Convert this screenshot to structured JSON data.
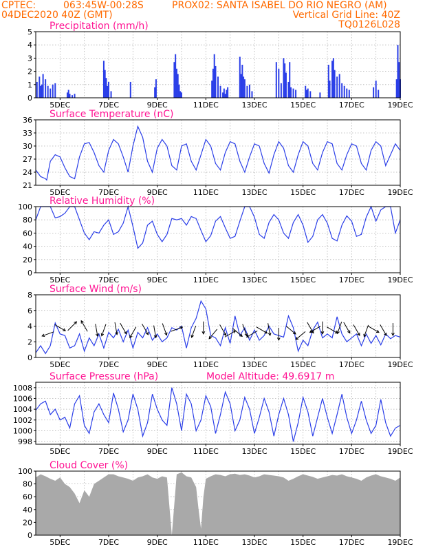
{
  "header": {
    "line1_left": "CPTEC:",
    "line1_mid": "063:45W-00:28S",
    "line1_right": "PROX02: SANTA ISABEL DO RIO NEGRO (AM)",
    "line2_left": "04DEC2020 40Z (GMT)",
    "line2_right": "Vertical Grid Line: 40Z",
    "line3_right": "TQ0126L028"
  },
  "colors": {
    "header_text": "#ff6a00",
    "panel_title": "#ff1493",
    "series": "#2a3ee8",
    "cloud_fill": "#a9a9a9",
    "grid": "#b0b0b0"
  },
  "chart_data": [
    {
      "type": "bar",
      "title": "Precipitation (mm/h)",
      "x_tick_labels": [
        "5DEC",
        "7DEC",
        "9DEC",
        "11DEC",
        "13DEC",
        "15DEC",
        "17DEC",
        "19DEC"
      ],
      "x_day_range": [
        4,
        19
      ],
      "ylim": [
        0,
        5
      ],
      "y_ticks": [
        0,
        1,
        2,
        3,
        4,
        5
      ],
      "grid": true,
      "x": [
        4.05,
        4.15,
        4.2,
        4.25,
        4.3,
        4.4,
        4.5,
        4.6,
        4.7,
        4.8,
        5.3,
        5.35,
        5.4,
        5.5,
        5.6,
        6.8,
        6.85,
        6.9,
        6.95,
        7.0,
        7.1,
        7.9,
        8.9,
        8.95,
        9.7,
        9.75,
        9.8,
        9.85,
        9.9,
        9.95,
        10.0,
        11.25,
        11.3,
        11.35,
        11.4,
        11.5,
        11.6,
        11.7,
        11.75,
        11.8,
        11.85,
        11.9,
        12.4,
        12.45,
        12.5,
        12.55,
        12.6,
        12.7,
        12.8,
        12.9,
        13.9,
        14.0,
        14.1,
        14.2,
        14.25,
        14.3,
        14.4,
        14.45,
        14.5,
        14.6,
        14.7,
        15.1,
        15.15,
        15.2,
        15.3,
        15.7,
        16.05,
        16.1,
        16.2,
        16.25,
        16.3,
        16.4,
        16.5,
        16.6,
        16.7,
        16.8,
        16.9,
        17.9,
        18.0,
        18.1,
        18.85,
        18.9,
        18.95,
        19.0
      ],
      "values": [
        1.2,
        1.6,
        0.9,
        1.0,
        1.8,
        1.4,
        0.9,
        0.7,
        1.0,
        1.1,
        0.4,
        0.6,
        0.3,
        0.2,
        0.3,
        2.8,
        2.1,
        1.5,
        0.9,
        1.2,
        0.5,
        1.2,
        0.8,
        1.4,
        2.7,
        3.3,
        2.2,
        1.8,
        1.0,
        0.5,
        0.4,
        1.3,
        2.2,
        3.3,
        2.4,
        1.6,
        0.9,
        0.4,
        0.7,
        0.3,
        0.6,
        0.8,
        3.1,
        1.8,
        2.5,
        1.6,
        1.4,
        0.9,
        1.0,
        0.5,
        2.7,
        2.2,
        1.1,
        3.0,
        2.6,
        1.9,
        1.2,
        2.7,
        0.8,
        0.7,
        0.6,
        0.9,
        0.6,
        0.7,
        0.5,
        0.4,
        2.5,
        1.3,
        2.8,
        3.0,
        2.1,
        1.6,
        1.8,
        1.1,
        0.9,
        0.7,
        0.6,
        0.8,
        1.3,
        0.6,
        1.4,
        4.0,
        2.7,
        1.4
      ]
    },
    {
      "type": "line",
      "title": "Surface Temperature (nC)",
      "x_tick_labels": [
        "5DEC",
        "7DEC",
        "9DEC",
        "11DEC",
        "13DEC",
        "15DEC",
        "17DEC",
        "19DEC"
      ],
      "x_day_range": [
        4,
        19
      ],
      "ylim": [
        21,
        36
      ],
      "y_ticks": [
        21,
        24,
        27,
        30,
        33,
        36
      ],
      "grid": true,
      "x": [
        4.0,
        4.2,
        4.4,
        4.45,
        4.6,
        4.8,
        5.0,
        5.2,
        5.4,
        5.6,
        5.8,
        6.0,
        6.2,
        6.4,
        6.6,
        6.8,
        7.0,
        7.2,
        7.4,
        7.6,
        7.8,
        8.0,
        8.2,
        8.4,
        8.6,
        8.8,
        9.0,
        9.2,
        9.4,
        9.6,
        9.8,
        10.0,
        10.2,
        10.4,
        10.6,
        10.8,
        11.0,
        11.2,
        11.4,
        11.6,
        11.8,
        12.0,
        12.2,
        12.4,
        12.6,
        12.8,
        13.0,
        13.2,
        13.4,
        13.6,
        13.8,
        14.0,
        14.2,
        14.4,
        14.6,
        14.8,
        15.0,
        15.2,
        15.4,
        15.6,
        15.8,
        16.0,
        16.2,
        16.4,
        16.6,
        16.8,
        17.0,
        17.2,
        17.4,
        17.6,
        17.8,
        18.0,
        18.2,
        18.4,
        18.6,
        18.8,
        19.0
      ],
      "values": [
        24.5,
        23.0,
        22.5,
        22.2,
        26.5,
        28.0,
        27.5,
        25.0,
        23.0,
        22.5,
        27.5,
        30.5,
        30.8,
        28.5,
        25.5,
        24.0,
        29.0,
        31.5,
        30.5,
        27.5,
        24.0,
        30.0,
        34.5,
        32.0,
        26.5,
        24.0,
        29.5,
        31.5,
        30.0,
        25.5,
        24.5,
        30.0,
        30.5,
        26.5,
        24.5,
        28.0,
        31.5,
        30.0,
        26.0,
        24.5,
        28.5,
        31.0,
        30.5,
        26.5,
        24.0,
        27.5,
        30.5,
        30.0,
        26.0,
        23.8,
        28.0,
        31.0,
        29.5,
        25.5,
        24.0,
        28.0,
        31.0,
        30.0,
        26.0,
        24.5,
        28.5,
        31.0,
        30.5,
        26.0,
        24.5,
        28.0,
        30.5,
        30.0,
        26.0,
        24.5,
        29.0,
        31.0,
        30.0,
        25.5,
        28.0,
        30.5,
        29.0
      ]
    },
    {
      "type": "line",
      "title": "Relative Humidity (%)",
      "x_tick_labels": [
        "5DEC",
        "7DEC",
        "9DEC",
        "11DEC",
        "13DEC",
        "15DEC",
        "17DEC",
        "19DEC"
      ],
      "x_day_range": [
        4,
        19
      ],
      "ylim": [
        0,
        100
      ],
      "y_ticks": [
        0,
        20,
        40,
        60,
        80,
        100
      ],
      "grid": true,
      "x": [
        4.0,
        4.2,
        4.4,
        4.6,
        4.8,
        5.0,
        5.2,
        5.4,
        5.6,
        5.8,
        6.0,
        6.2,
        6.4,
        6.6,
        6.8,
        7.0,
        7.2,
        7.4,
        7.6,
        7.8,
        8.0,
        8.2,
        8.4,
        8.6,
        8.8,
        9.0,
        9.2,
        9.4,
        9.6,
        9.8,
        10.0,
        10.2,
        10.4,
        10.6,
        10.8,
        11.0,
        11.2,
        11.4,
        11.6,
        11.8,
        12.0,
        12.2,
        12.4,
        12.6,
        12.8,
        13.0,
        13.2,
        13.4,
        13.6,
        13.8,
        14.0,
        14.2,
        14.4,
        14.6,
        14.8,
        15.0,
        15.2,
        15.4,
        15.6,
        15.8,
        16.0,
        16.2,
        16.4,
        16.6,
        16.8,
        17.0,
        17.2,
        17.4,
        17.6,
        17.8,
        18.0,
        18.2,
        18.4,
        18.6,
        18.8,
        19.0
      ],
      "values": [
        80,
        100,
        100,
        100,
        83,
        85,
        90,
        100,
        100,
        80,
        60,
        50,
        62,
        60,
        72,
        80,
        58,
        62,
        75,
        100,
        70,
        37,
        45,
        72,
        78,
        58,
        47,
        58,
        82,
        80,
        82,
        72,
        85,
        82,
        64,
        47,
        56,
        78,
        85,
        68,
        52,
        55,
        78,
        100,
        100,
        84,
        58,
        52,
        76,
        88,
        80,
        60,
        52,
        76,
        88,
        72,
        46,
        55,
        80,
        88,
        75,
        52,
        48,
        72,
        86,
        78,
        55,
        58,
        84,
        100,
        78,
        95,
        100,
        100,
        60,
        80
      ]
    },
    {
      "type": "line",
      "title": "Surface Wind (m/s)",
      "x_tick_labels": [
        "5DEC",
        "7DEC",
        "9DEC",
        "11DEC",
        "13DEC",
        "15DEC",
        "17DEC",
        "19DEC"
      ],
      "x_day_range": [
        4,
        19
      ],
      "ylim": [
        0,
        8
      ],
      "y_ticks": [
        0,
        2,
        4,
        6,
        8
      ],
      "grid": true,
      "x": [
        4.0,
        4.2,
        4.4,
        4.6,
        4.8,
        5.0,
        5.2,
        5.4,
        5.6,
        5.8,
        6.0,
        6.2,
        6.4,
        6.6,
        6.8,
        7.0,
        7.2,
        7.4,
        7.6,
        7.8,
        8.0,
        8.2,
        8.4,
        8.6,
        8.8,
        9.0,
        9.2,
        9.4,
        9.6,
        9.8,
        10.0,
        10.2,
        10.4,
        10.6,
        10.8,
        11.0,
        11.2,
        11.4,
        11.6,
        11.8,
        12.0,
        12.2,
        12.4,
        12.6,
        12.8,
        13.0,
        13.2,
        13.4,
        13.6,
        13.8,
        14.0,
        14.2,
        14.4,
        14.6,
        14.8,
        15.0,
        15.2,
        15.4,
        15.6,
        15.8,
        16.0,
        16.2,
        16.4,
        16.6,
        16.8,
        17.0,
        17.2,
        17.4,
        17.6,
        17.8,
        18.0,
        18.2,
        18.4,
        18.6,
        18.8,
        19.0
      ],
      "values": [
        0.6,
        1.5,
        0.5,
        1.5,
        4.4,
        3.0,
        2.8,
        1.2,
        1.5,
        3.0,
        0.8,
        2.5,
        1.5,
        3.0,
        1.2,
        3.2,
        2.5,
        3.6,
        2.0,
        3.5,
        1.2,
        3.2,
        2.5,
        3.8,
        2.2,
        3.0,
        2.0,
        2.5,
        3.8,
        3.5,
        4.0,
        1.2,
        3.8,
        5.0,
        7.2,
        6.2,
        2.8,
        2.5,
        1.5,
        3.8,
        1.8,
        5.3,
        2.8,
        3.8,
        2.2,
        3.5,
        2.2,
        2.8,
        4.0,
        3.0,
        2.8,
        2.6,
        5.3,
        3.8,
        0.8,
        2.2,
        1.5,
        3.5,
        4.5,
        2.5,
        3.0,
        2.5,
        5.2,
        3.0,
        2.0,
        2.5,
        3.0,
        1.5,
        3.0,
        1.8,
        2.8,
        1.6,
        3.0,
        2.4,
        2.8,
        2.6
      ],
      "arrows": [
        [
          4.5,
          3.0,
          200
        ],
        [
          5.0,
          3.8,
          330
        ],
        [
          5.5,
          4.0,
          45
        ],
        [
          6.0,
          4.0,
          120
        ],
        [
          6.5,
          3.5,
          280
        ],
        [
          6.8,
          3.5,
          250
        ],
        [
          7.3,
          3.7,
          280
        ],
        [
          7.6,
          3.7,
          300
        ],
        [
          8.0,
          3.2,
          240
        ],
        [
          8.5,
          3.6,
          300
        ],
        [
          8.9,
          3.3,
          280
        ],
        [
          9.3,
          3.6,
          290
        ],
        [
          9.8,
          3.6,
          20
        ],
        [
          10.5,
          3.3,
          250
        ],
        [
          10.9,
          3.8,
          270
        ],
        [
          11.3,
          3.0,
          230
        ],
        [
          11.7,
          3.5,
          300
        ],
        [
          12.0,
          3.0,
          30
        ],
        [
          12.3,
          3.2,
          320
        ],
        [
          12.6,
          3.5,
          290
        ],
        [
          12.9,
          3.0,
          210
        ],
        [
          13.3,
          3.5,
          330
        ],
        [
          13.6,
          3.6,
          280
        ],
        [
          14.0,
          3.0,
          270
        ],
        [
          14.5,
          3.5,
          320
        ],
        [
          14.9,
          2.8,
          220
        ],
        [
          15.3,
          3.8,
          300
        ],
        [
          15.5,
          3.6,
          210
        ],
        [
          15.8,
          3.8,
          270
        ],
        [
          16.2,
          3.5,
          330
        ],
        [
          16.5,
          3.8,
          250
        ],
        [
          16.8,
          3.8,
          300
        ],
        [
          17.2,
          3.5,
          300
        ],
        [
          17.6,
          3.4,
          250
        ],
        [
          17.9,
          3.6,
          330
        ],
        [
          18.3,
          3.5,
          300
        ],
        [
          18.7,
          3.6,
          270
        ]
      ]
    },
    {
      "type": "line",
      "title": "Surface Pressure (hPa)",
      "subtitle": "Model Altitude: 49.6917 m",
      "x_tick_labels": [
        "5DEC",
        "7DEC",
        "9DEC",
        "11DEC",
        "13DEC",
        "15DEC",
        "17DEC",
        "19DEC"
      ],
      "x_day_range": [
        4,
        19
      ],
      "ylim": [
        997.5,
        1009
      ],
      "y_ticks": [
        998,
        1000,
        1002,
        1004,
        1006,
        1008
      ],
      "grid": true,
      "x": [
        4.0,
        4.2,
        4.4,
        4.6,
        4.8,
        5.0,
        5.2,
        5.4,
        5.6,
        5.8,
        6.0,
        6.2,
        6.4,
        6.6,
        6.8,
        7.0,
        7.2,
        7.4,
        7.6,
        7.8,
        8.0,
        8.2,
        8.4,
        8.6,
        8.8,
        9.0,
        9.2,
        9.4,
        9.6,
        9.8,
        10.0,
        10.2,
        10.4,
        10.6,
        10.8,
        11.0,
        11.2,
        11.4,
        11.6,
        11.8,
        12.0,
        12.2,
        12.4,
        12.6,
        12.8,
        13.0,
        13.2,
        13.4,
        13.6,
        13.8,
        14.0,
        14.2,
        14.4,
        14.6,
        14.8,
        15.0,
        15.2,
        15.4,
        15.6,
        15.8,
        16.0,
        16.2,
        16.4,
        16.6,
        16.8,
        17.0,
        17.2,
        17.4,
        17.6,
        17.8,
        18.0,
        18.2,
        18.4,
        18.6,
        18.8,
        19.0
      ],
      "values": [
        1003.8,
        1005.0,
        1005.5,
        1003.0,
        1004.0,
        1002.0,
        1002.5,
        1000.5,
        1005.0,
        1006.5,
        1001.0,
        999.5,
        1003.5,
        1005.0,
        1003.0,
        1001.5,
        1007.0,
        1004.0,
        999.8,
        1002.0,
        1006.8,
        1004.0,
        999.0,
        1001.5,
        1006.8,
        1004.0,
        1002.0,
        1001.0,
        1008.0,
        1005.0,
        1000.0,
        1006.8,
        1005.0,
        1000.0,
        1002.0,
        1006.5,
        1004.5,
        999.5,
        1003.0,
        1007.2,
        1005.0,
        1000.0,
        1002.0,
        1006.2,
        1004.0,
        999.5,
        1002.5,
        1006.0,
        1003.5,
        999.0,
        1003.0,
        1006.0,
        1003.0,
        998.0,
        1001.5,
        1006.2,
        1003.5,
        999.0,
        1002.5,
        1006.0,
        1002.5,
        999.5,
        1003.0,
        1006.8,
        1002.5,
        999.5,
        1002.0,
        1005.5,
        1002.0,
        999.5,
        1001.0,
        1005.8,
        1001.5,
        999.0,
        1000.5,
        1001.0
      ]
    },
    {
      "type": "area",
      "title": "Cloud Cover (%)",
      "x_tick_labels": [
        "5DEC",
        "7DEC",
        "9DEC",
        "11DEC",
        "13DEC",
        "15DEC",
        "17DEC",
        "19DEC"
      ],
      "x_day_range": [
        4,
        19
      ],
      "ylim": [
        0,
        100
      ],
      "y_ticks": [
        0,
        20,
        40,
        60,
        80,
        100
      ],
      "grid": true,
      "x": [
        4.0,
        4.2,
        4.4,
        4.6,
        4.8,
        5.0,
        5.2,
        5.4,
        5.6,
        5.8,
        6.0,
        6.2,
        6.4,
        6.6,
        6.8,
        7.0,
        7.2,
        7.4,
        7.6,
        7.8,
        8.0,
        8.2,
        8.4,
        8.6,
        8.8,
        9.0,
        9.2,
        9.4,
        9.6,
        9.8,
        10.0,
        10.2,
        10.4,
        10.6,
        10.7,
        10.8,
        10.9,
        11.0,
        11.2,
        11.4,
        11.6,
        11.8,
        12.0,
        12.2,
        12.4,
        12.6,
        12.8,
        13.0,
        13.2,
        13.4,
        13.6,
        13.8,
        14.0,
        14.2,
        14.4,
        14.6,
        14.8,
        15.0,
        15.2,
        15.4,
        15.6,
        15.8,
        16.0,
        16.2,
        16.4,
        16.6,
        16.8,
        17.0,
        17.2,
        17.4,
        17.6,
        17.8,
        18.0,
        18.2,
        18.4,
        18.6,
        18.8,
        19.0
      ],
      "values": [
        90,
        95,
        92,
        88,
        85,
        90,
        80,
        75,
        65,
        50,
        70,
        60,
        80,
        85,
        90,
        95,
        95,
        92,
        90,
        88,
        85,
        90,
        92,
        95,
        90,
        88,
        92,
        90,
        0,
        95,
        98,
        92,
        90,
        75,
        40,
        10,
        60,
        88,
        92,
        95,
        94,
        92,
        95,
        96,
        94,
        95,
        93,
        90,
        92,
        95,
        94,
        93,
        92,
        90,
        85,
        88,
        92,
        95,
        93,
        91,
        88,
        90,
        92,
        94,
        93,
        95,
        92,
        90,
        88,
        85,
        90,
        93,
        95,
        92,
        90,
        88,
        85,
        90
      ]
    }
  ]
}
